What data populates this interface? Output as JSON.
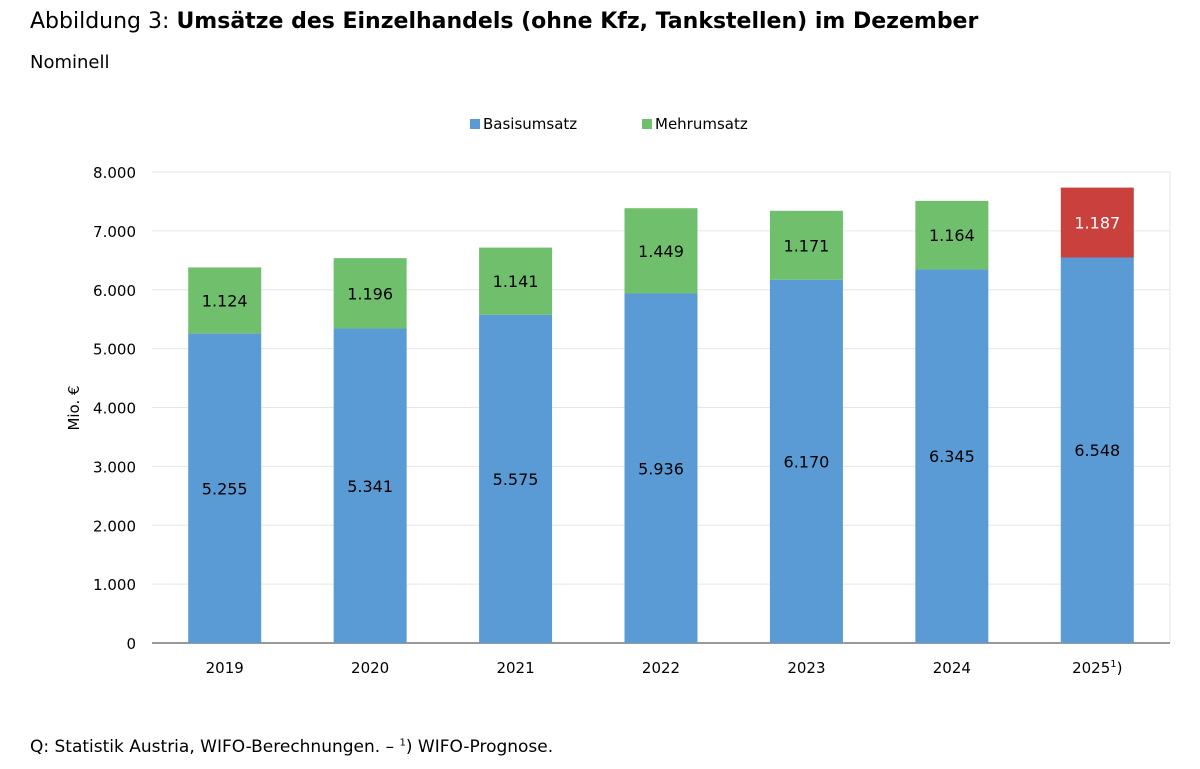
{
  "header": {
    "title_prefix": "Abbildung 3:",
    "title_main": "Umsätze des Einzelhandels (ohne Kfz, Tankstellen) im Dezember",
    "subtitle": "Nominell"
  },
  "footer": {
    "source_text": "Q: Statistik Austria, WIFO-Berechnungen. – ",
    "source_sup": "1",
    "source_text_end": ") WIFO-Prognose."
  },
  "chart_data": {
    "type": "bar",
    "stacked": true,
    "categories": [
      "2019",
      "2020",
      "2021",
      "2022",
      "2023",
      "2024",
      "2025"
    ],
    "category_labels": [
      {
        "text": "2019",
        "sup": ""
      },
      {
        "text": "2020",
        "sup": ""
      },
      {
        "text": "2021",
        "sup": ""
      },
      {
        "text": "2022",
        "sup": ""
      },
      {
        "text": "2023",
        "sup": ""
      },
      {
        "text": "2024",
        "sup": ""
      },
      {
        "text": "2025",
        "sup": "1",
        "after": ")"
      }
    ],
    "series": [
      {
        "name": "Basisumsatz",
        "color": "#5B9BD5",
        "values": [
          5255,
          5341,
          5575,
          5936,
          6170,
          6345,
          6548
        ],
        "labels": [
          "5.255",
          "5.341",
          "5.575",
          "5.936",
          "6.170",
          "6.345",
          "6.548"
        ]
      },
      {
        "name": "Mehrumsatz",
        "color": "#70BF6D",
        "values": [
          1124,
          1196,
          1141,
          1449,
          1171,
          1164,
          1187
        ],
        "labels": [
          "1.124",
          "1.196",
          "1.141",
          "1.449",
          "1.171",
          "1.164",
          "1.187"
        ],
        "highlight": {
          "index": 6,
          "color": "#C9403D",
          "label_color": "#ffffff"
        }
      }
    ],
    "ylabel": "Mio. €",
    "xlabel": "",
    "ylim": [
      0,
      8000
    ],
    "yticks": [
      0,
      1000,
      2000,
      3000,
      4000,
      5000,
      6000,
      7000,
      8000
    ],
    "ytick_labels": [
      "0",
      "1.000",
      "2.000",
      "3.000",
      "4.000",
      "5.000",
      "6.000",
      "7.000",
      "8.000"
    ],
    "grid": true,
    "legend_position": "top-center"
  }
}
